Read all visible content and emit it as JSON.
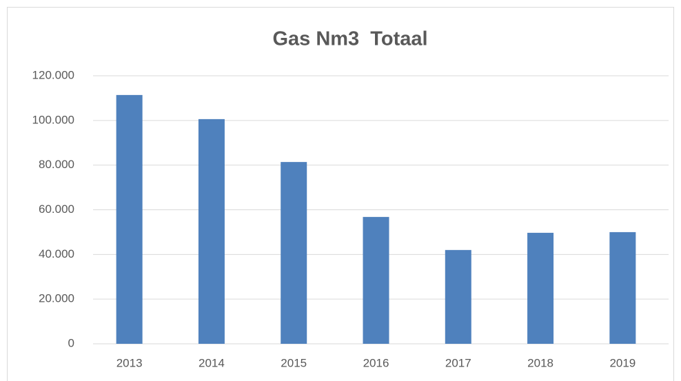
{
  "chart_data": {
    "type": "bar",
    "title": "Gas Nm3  Totaal",
    "categories": [
      "2013",
      "2014",
      "2015",
      "2016",
      "2017",
      "2018",
      "2019"
    ],
    "values": [
      111400,
      100600,
      81400,
      56800,
      42000,
      49700,
      50000
    ],
    "color": "#4f81bd",
    "ylim": [
      0,
      120000
    ],
    "yticks": [
      0,
      {
        "value": 20000,
        "label": "20.000"
      },
      {
        "value": 40000,
        "label": "40.000"
      },
      {
        "value": 60000,
        "label": "60.000"
      },
      {
        "value": 80000,
        "label": "80.000"
      },
      {
        "value": 100000,
        "label": "100.000"
      },
      {
        "value": 120000,
        "label": "120.000"
      }
    ],
    "grid": true
  }
}
